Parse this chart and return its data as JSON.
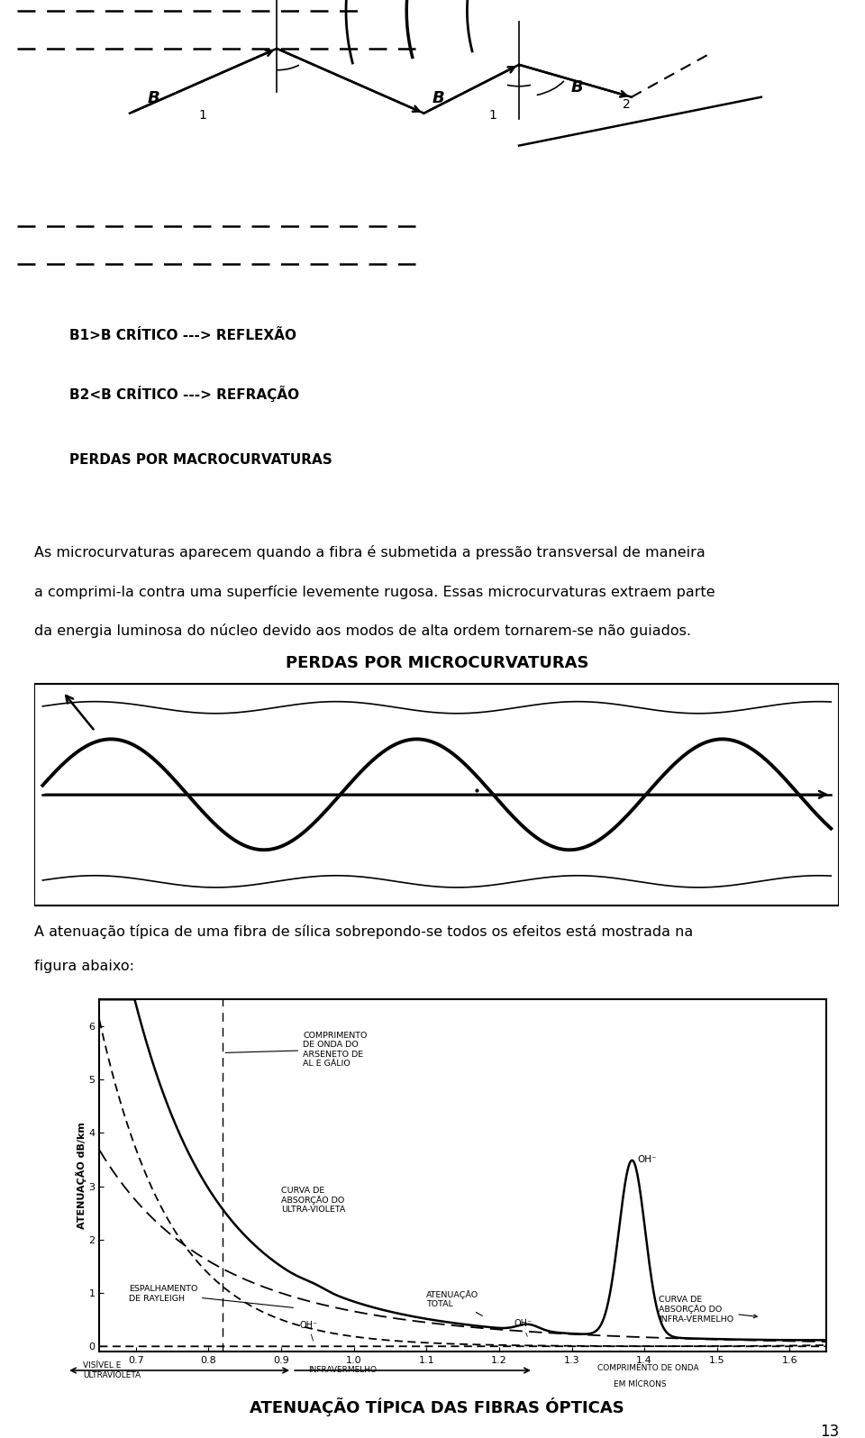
{
  "bg_color": "#ffffff",
  "page_number": "13",
  "top_diagram_titles": [
    "B1>B CRÍTICO ---> REFLEXÃO",
    "B2<B CRÍTICO ---> REFRAÇÃO",
    "PERDAS POR MACROCURVATURAS"
  ],
  "middle_text_line1": "As microcurvaturas aparecem quando a fibra é submetida a pressão transversal de maneira",
  "middle_text_line2": "a comprimi-la contra uma superfície levemente rugosa. Essas microcurvaturas extraem parte",
  "middle_text_line3": "da energia luminosa do núcleo devido aos modos de alta ordem tornarem-se não guiados.",
  "microcurv_title": "PERDAS POR MICROCURVATURAS",
  "bottom_text_line1": "A atenuação típica de uma fibra de sílica sobrepondo-se todos os efeitos está mostrada na",
  "bottom_text_line2": "figura abaixo:",
  "graph_title": "ATENUAÇÃO TÍPICA DAS FIBRAS ÓPTICAS",
  "graph_ylabel": "ATENUAÇÃO dB/km",
  "graph_xticks": [
    0.7,
    0.8,
    0.9,
    1.0,
    1.1,
    1.2,
    1.3,
    1.4,
    1.5,
    1.6
  ],
  "graph_yticks": [
    0,
    1,
    2,
    3,
    4,
    5,
    6
  ],
  "graph_xlim": [
    0.65,
    1.65
  ],
  "graph_ylim": [
    -0.1,
    6.5
  ]
}
